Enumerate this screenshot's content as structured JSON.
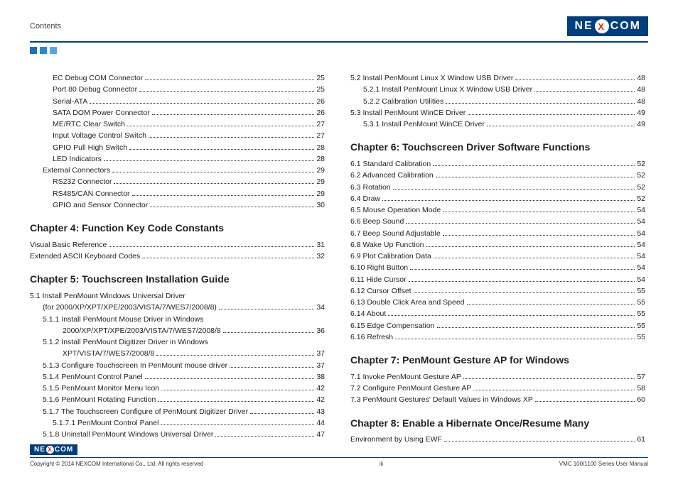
{
  "header": {
    "contents_label": "Contents",
    "logo_left": "NE",
    "logo_x": "X",
    "logo_right": "COM",
    "square_colors": [
      "#1f6db5",
      "#2f87d6",
      "#58a6e6"
    ]
  },
  "left_col": {
    "pre_rows": [
      {
        "indent": 2,
        "label": "EC Debug COM Connector",
        "page": "25"
      },
      {
        "indent": 2,
        "label": "Port 80 Debug Connector",
        "page": "25"
      },
      {
        "indent": 2,
        "label": "Serial-ATA",
        "page": "26"
      },
      {
        "indent": 2,
        "label": "SATA DOM Power Connector",
        "page": "26"
      },
      {
        "indent": 2,
        "label": "ME/RTC Clear Switch",
        "page": "27"
      },
      {
        "indent": 2,
        "label": "Input Voltage Control Switch",
        "page": "27"
      },
      {
        "indent": 2,
        "label": "GPIO Pull High Switch",
        "page": "28"
      },
      {
        "indent": 2,
        "label": "LED Indicators",
        "page": "28"
      },
      {
        "indent": 1,
        "label": "External Connectors",
        "page": "29"
      },
      {
        "indent": 2,
        "label": "RS232 Connector",
        "page": "29"
      },
      {
        "indent": 2,
        "label": "RS485/CAN Connector",
        "page": "29"
      },
      {
        "indent": 2,
        "label": "GPIO and Sensor Connector",
        "page": "30"
      }
    ],
    "chapter4": {
      "title": "Chapter 4: Function Key Code Constants",
      "rows": [
        {
          "indent": 0,
          "label": "Visual Basic Reference",
          "page": "31"
        },
        {
          "indent": 0,
          "label": "Extended ASCII Keyboard Codes",
          "page": "32"
        }
      ]
    },
    "chapter5": {
      "title": "Chapter 5: Touchscreen Installation Guide",
      "rows": [
        {
          "indent": 0,
          "label": "5.1  Install PenMount Windows Universal Driver",
          "page": "",
          "nopage": true
        },
        {
          "indent": 1,
          "label": "(for 2000/XP/XPT/XPE/2003/VISTA/7/WES7/2008/8)",
          "page": "34"
        },
        {
          "indent": 1,
          "label": "5.1.1  Install PenMount Mouse Driver in Windows",
          "page": "",
          "nopage": true
        },
        {
          "indent": 3,
          "label": "2000/XP/XPT/XPE/2003/VISTA/7/WES7/2008/8",
          "page": "36"
        },
        {
          "indent": 1,
          "label": "5.1.2  Install PenMount Digitizer Driver in Windows",
          "page": "",
          "nopage": true
        },
        {
          "indent": 3,
          "label": "XPT/VISTA/7/WES7/2008/8",
          "page": "37"
        },
        {
          "indent": 1,
          "label": "5.1.3  Configure Touchscreen In PenMount mouse driver",
          "page": "37"
        },
        {
          "indent": 1,
          "label": "5.1.4  PenMount Control Panel",
          "page": "38"
        },
        {
          "indent": 1,
          "label": "5.1.5  PenMount Monitor Menu Icon",
          "page": "42"
        },
        {
          "indent": 1,
          "label": "5.1.6  PenMount Rotating Function",
          "page": "42"
        },
        {
          "indent": 1,
          "label": "5.1.7  The Touchscreen Configure of PenMount Digitizer Driver",
          "page": "43"
        },
        {
          "indent": 2,
          "label": "5.1.7.1  PenMount Control Panel",
          "page": "44"
        },
        {
          "indent": 1,
          "label": "5.1.8  Uninstall PenMount Windows Universal Driver",
          "page": "47"
        }
      ]
    }
  },
  "right_col": {
    "pre_rows": [
      {
        "indent": 0,
        "label": "5.2  Install PenMount Linux X Window USB Driver",
        "page": "48"
      },
      {
        "indent": 1,
        "label": "5.2.1  Install PenMount Linux X Window USB Driver",
        "page": "48"
      },
      {
        "indent": 1,
        "label": "5.2.2  Calibration Utilities",
        "page": "48"
      },
      {
        "indent": 0,
        "label": "5.3  Install PenMount WinCE Driver",
        "page": "49"
      },
      {
        "indent": 1,
        "label": "5.3.1  Install PenMount WinCE Driver",
        "page": "49"
      }
    ],
    "chapter6": {
      "title": "Chapter 6: Touchscreen Driver Software Functions",
      "rows": [
        {
          "indent": 0,
          "label": "6.1  Standard Calibration",
          "page": "52"
        },
        {
          "indent": 0,
          "label": "6.2  Advanced Calibration",
          "page": "52"
        },
        {
          "indent": 0,
          "label": "6.3  Rotation",
          "page": "52"
        },
        {
          "indent": 0,
          "label": "6.4  Draw",
          "page": "52"
        },
        {
          "indent": 0,
          "label": "6.5  Mouse Operation Mode",
          "page": "54"
        },
        {
          "indent": 0,
          "label": "6.6  Beep Sound",
          "page": "54"
        },
        {
          "indent": 0,
          "label": "6.7  Beep Sound Adjustable",
          "page": "54"
        },
        {
          "indent": 0,
          "label": "6.8  Wake Up Function",
          "page": "54"
        },
        {
          "indent": 0,
          "label": "6.9  Plot Calibration Data",
          "page": "54"
        },
        {
          "indent": 0,
          "label": "6.10  Right Button",
          "page": "54"
        },
        {
          "indent": 0,
          "label": "6.11  Hide Cursor",
          "page": "54"
        },
        {
          "indent": 0,
          "label": "6.12  Cursor Offset",
          "page": "55"
        },
        {
          "indent": 0,
          "label": "6.13  Double Click Area and Speed",
          "page": "55"
        },
        {
          "indent": 0,
          "label": "6.14  About",
          "page": "55"
        },
        {
          "indent": 0,
          "label": "6.15  Edge Compensation",
          "page": "55"
        },
        {
          "indent": 0,
          "label": "6.16  Refresh",
          "page": "55"
        }
      ]
    },
    "chapter7": {
      "title": "Chapter 7: PenMount Gesture AP for Windows",
      "rows": [
        {
          "indent": 0,
          "label": "7.1  Invoke PenMount Gesture AP",
          "page": "57"
        },
        {
          "indent": 0,
          "label": "7.2  Configure PenMount Gesture AP",
          "page": "58"
        },
        {
          "indent": 0,
          "label": "7.3  PenMount Gestures' Default Values in Windows XP",
          "page": "60"
        }
      ]
    },
    "chapter8": {
      "title": "Chapter 8: Enable a Hibernate Once/Resume Many",
      "rows": [
        {
          "indent": 0,
          "label": "Environment by Using EWF",
          "page": "61"
        }
      ]
    }
  },
  "footer": {
    "logo_left": "NE",
    "logo_x": "X",
    "logo_right": "COM",
    "copyright": "Copyright © 2014 NEXCOM International Co., Ltd. All rights reserved",
    "page_num": "iii",
    "manual": "VMC 100/1100 Series User Manual"
  }
}
